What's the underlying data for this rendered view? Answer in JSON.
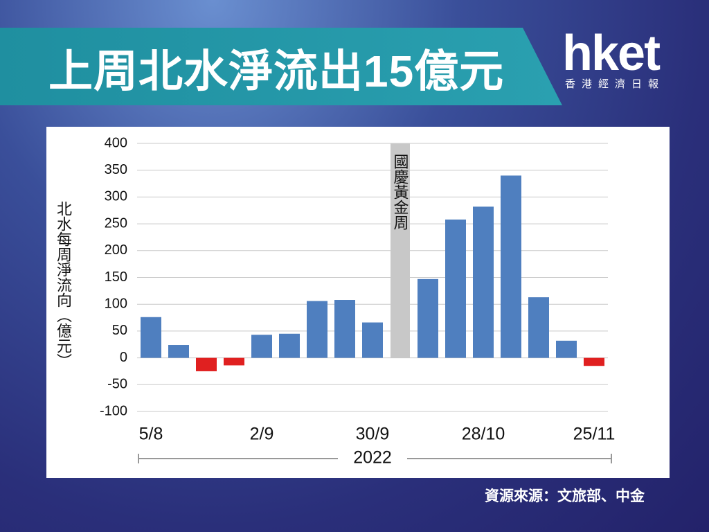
{
  "header": {
    "title": "上周北水淨流出15億元",
    "logo": "hket",
    "logo_subtitle": "香港經濟日報"
  },
  "chart_data": {
    "type": "bar",
    "y_label": "北水每周淨流向（億元）",
    "x_label": "2022",
    "categories": [
      "5/8",
      null,
      null,
      null,
      "2/9",
      null,
      null,
      null,
      "30/9",
      null,
      null,
      null,
      "28/10",
      null,
      null,
      null,
      "25/11"
    ],
    "values": [
      76,
      24,
      -25,
      -14,
      43,
      45,
      106,
      108,
      66,
      null,
      147,
      258,
      282,
      340,
      113,
      32,
      -15
    ],
    "color": "#4f7fbf",
    "negative_color": "#e02020",
    "highlight": {
      "label": "國慶黃金周",
      "index": 9,
      "color": "#c8c8c8"
    },
    "ylim": [
      -100,
      400
    ],
    "yticks": [
      -100,
      -50,
      0,
      50,
      100,
      150,
      200,
      250,
      300,
      350,
      400
    ],
    "grid": true
  },
  "footer": {
    "source": "資源來源：文旅部、中金"
  }
}
